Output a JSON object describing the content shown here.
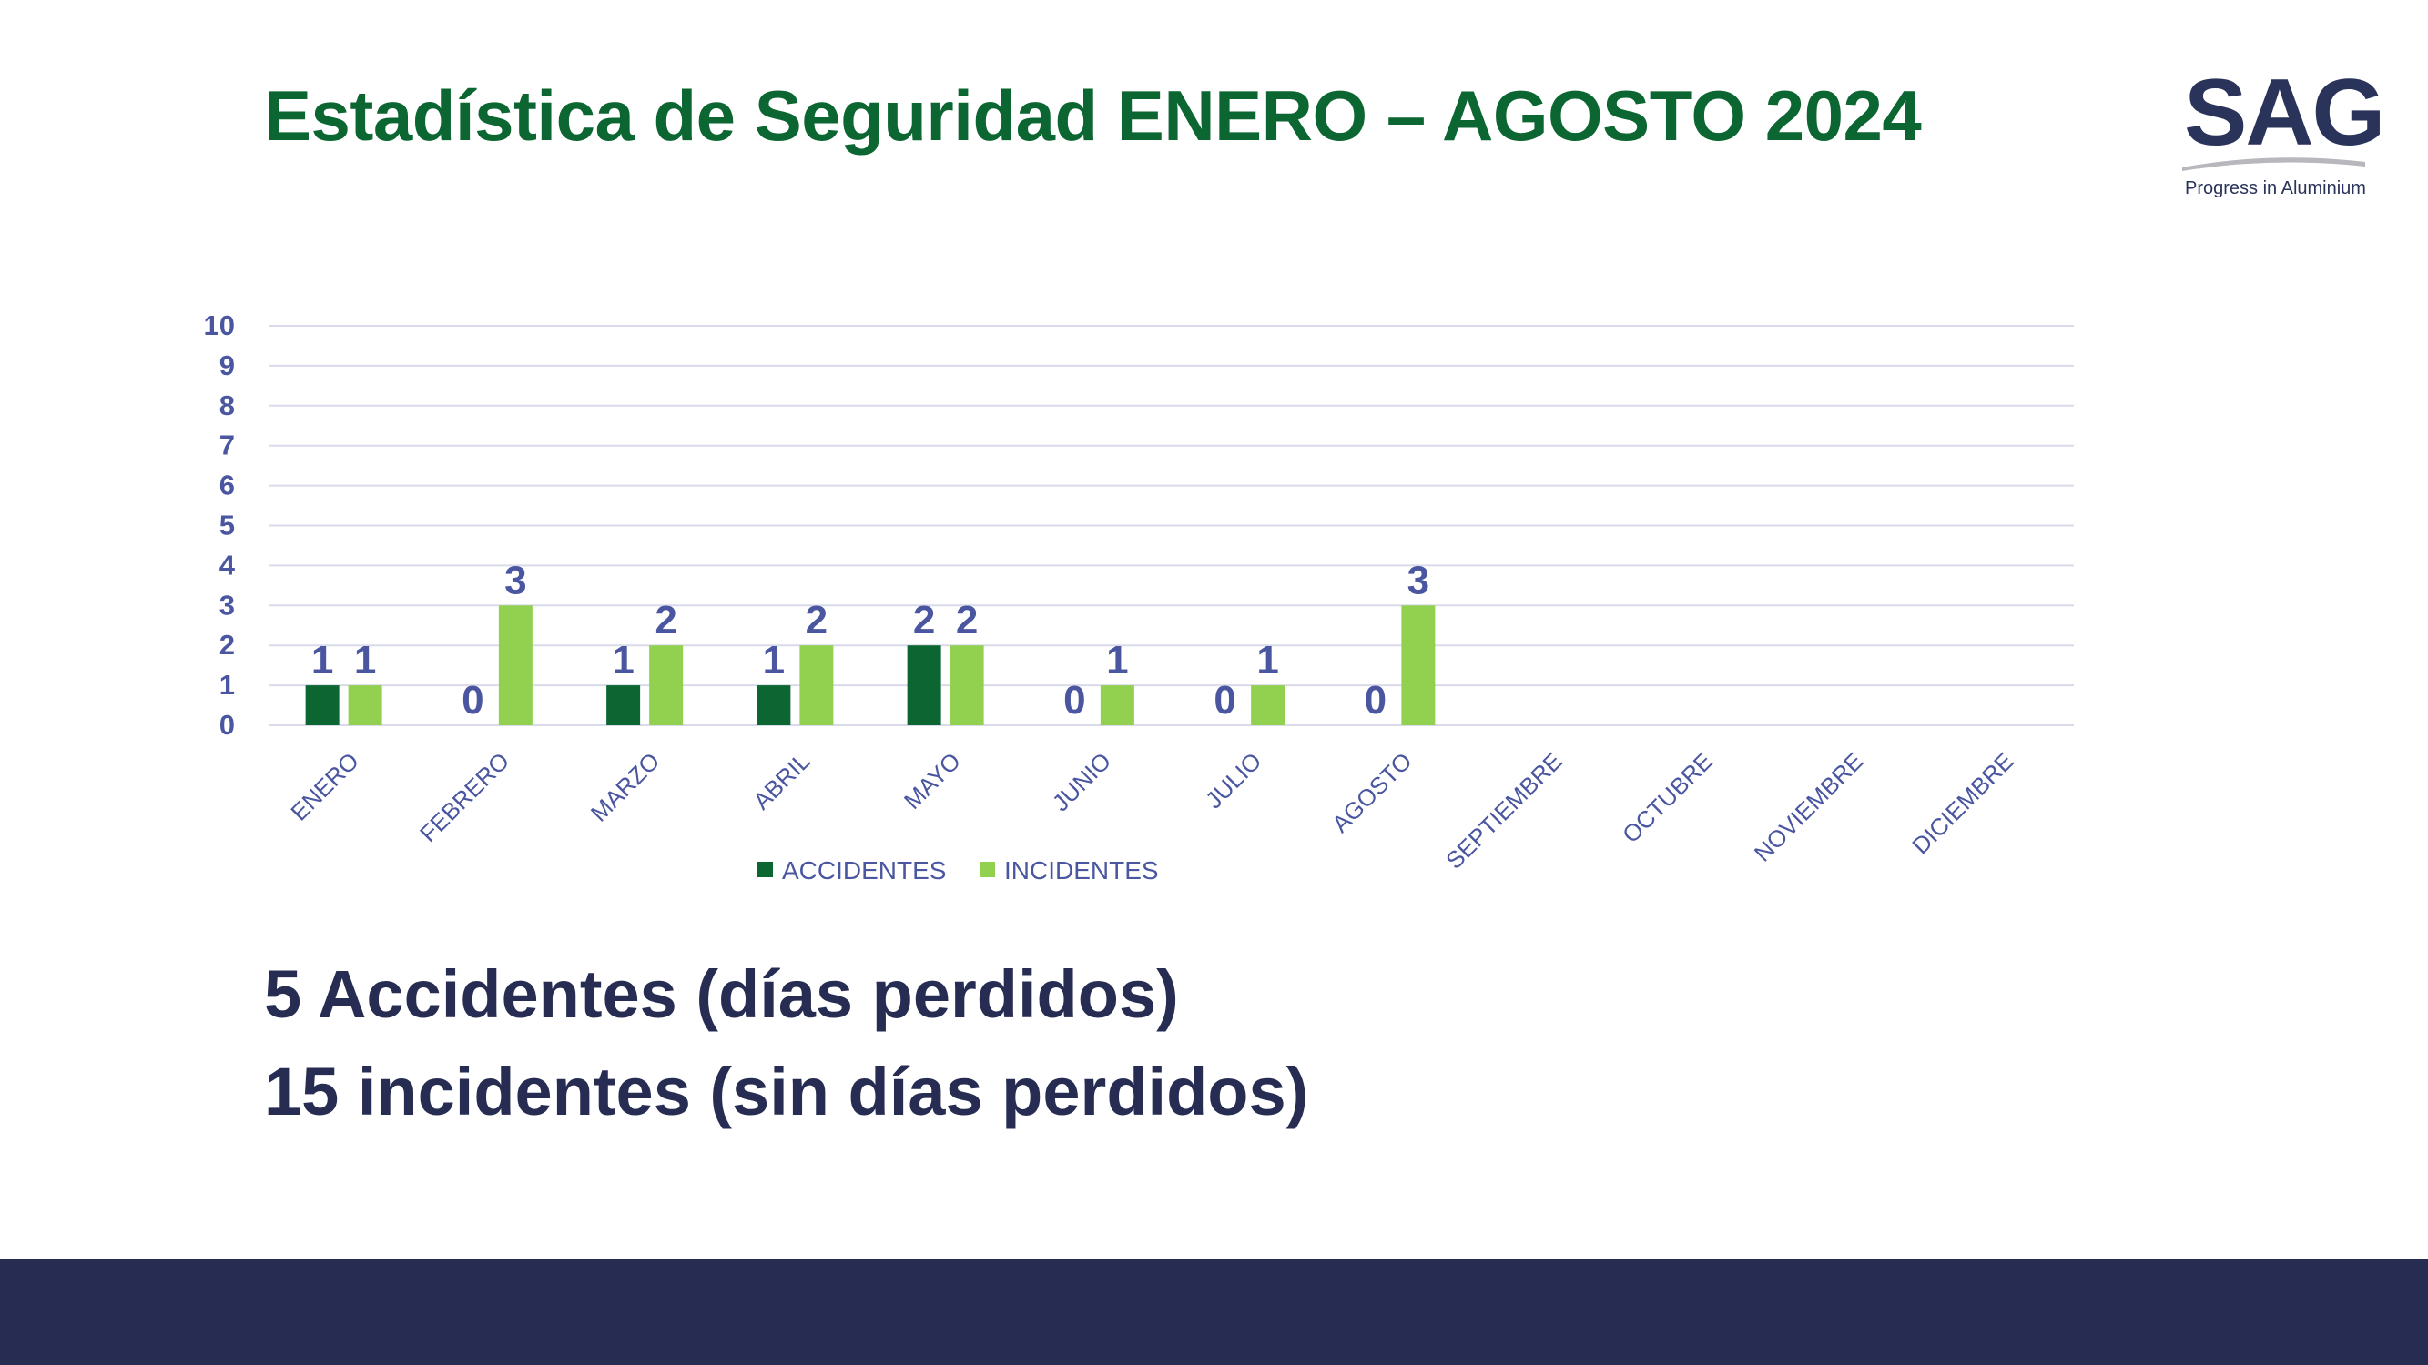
{
  "page": {
    "title": "Estadística de Seguridad ENERO – AGOSTO 2024",
    "summary": [
      "5 Accidentes (días perdidos)",
      "15 incidentes (sin días perdidos)"
    ]
  },
  "logo": {
    "name": "SAG",
    "tagline": "Progress in Aluminium",
    "colors": {
      "text": "#2a3359",
      "swoosh": "#b7b7bd"
    }
  },
  "colors": {
    "title": "#0b6631",
    "axis_text": "#4a56a0",
    "gridline": "#d9dbea",
    "summary_text": "#272d52",
    "footer": "#272d52"
  },
  "chart_data": {
    "type": "bar",
    "categories": [
      "ENERO",
      "FEBRERO",
      "MARZO",
      "ABRIL",
      "MAYO",
      "JUNIO",
      "JULIO",
      "AGOSTO",
      "SEPTIEMBRE",
      "OCTUBRE",
      "NOVIEMBRE",
      "DICIEMBRE"
    ],
    "series": [
      {
        "name": "ACCIDENTES",
        "color": "#0b6631",
        "values": [
          1,
          0,
          1,
          1,
          2,
          0,
          0,
          0,
          null,
          null,
          null,
          null
        ]
      },
      {
        "name": "INCIDENTES",
        "color": "#92d050",
        "values": [
          1,
          3,
          2,
          2,
          2,
          1,
          1,
          3,
          null,
          null,
          null,
          null
        ]
      }
    ],
    "title": "",
    "xlabel": "",
    "ylabel": "",
    "ylim": [
      0,
      10
    ],
    "yticks": [
      0,
      1,
      2,
      3,
      4,
      5,
      6,
      7,
      8,
      9,
      10
    ],
    "grid": true,
    "data_labels": true,
    "legend_position": "bottom"
  }
}
